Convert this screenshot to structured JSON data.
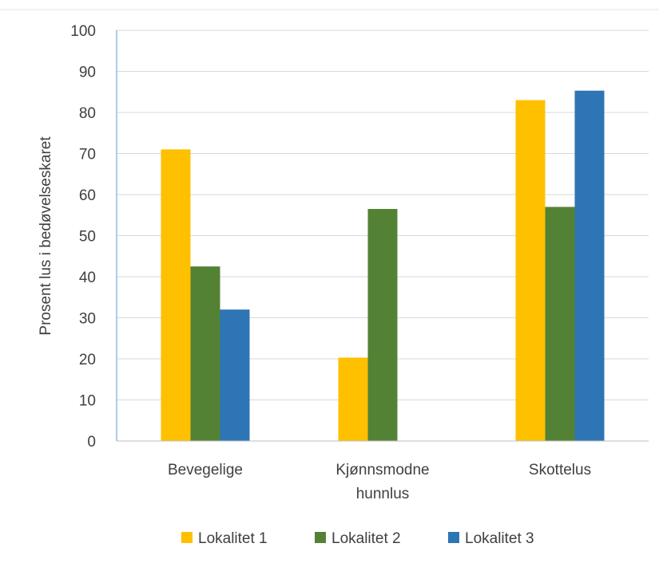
{
  "chart_data": {
    "type": "bar",
    "categories": [
      [
        "Bevegelige"
      ],
      [
        "Kjønnsmodne",
        "hunnlus"
      ],
      [
        "Skottelus"
      ]
    ],
    "series": [
      {
        "name": "Lokalitet 1",
        "color": "#ffc000",
        "values": [
          71,
          20.3,
          83
        ]
      },
      {
        "name": "Lokalitet 2",
        "color": "#548235",
        "values": [
          42.5,
          56.5,
          57
        ]
      },
      {
        "name": "Lokalitet 3",
        "color": "#2e75b6",
        "values": [
          32,
          null,
          85.3
        ]
      }
    ],
    "ylabel": "Prosent lus i bedøvelseskaret",
    "ylim": [
      0,
      100
    ],
    "yticks": [
      0,
      10,
      20,
      30,
      40,
      50,
      60,
      70,
      80,
      90,
      100
    ],
    "grid": true,
    "legend_position": "bottom"
  }
}
